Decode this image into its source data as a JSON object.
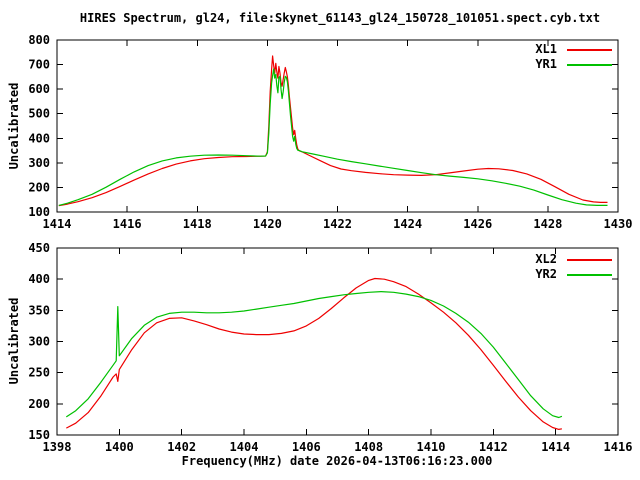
{
  "window": {
    "background": "#ffffff",
    "text_color": "#000000"
  },
  "chart_data": [
    {
      "type": "line",
      "title": "HIRES Spectrum, gl24, file:Skynet_61143_gl24_150728_101051.spect.cyb.txt",
      "xlabel": "",
      "ylabel": "Uncalibrated",
      "xlim": [
        1414,
        1430
      ],
      "ylim": [
        100,
        800
      ],
      "xticks": [
        1414,
        1416,
        1418,
        1420,
        1422,
        1424,
        1426,
        1428,
        1430
      ],
      "yticks": [
        100,
        200,
        300,
        400,
        500,
        600,
        700,
        800
      ],
      "grid": false,
      "legend_position": "top-right-inside",
      "series": [
        {
          "name": "XL1",
          "color": "#ee0000",
          "points": [
            [
              1414.05,
              126
            ],
            [
              1414.3,
              132
            ],
            [
              1414.6,
              142
            ],
            [
              1415.0,
              158
            ],
            [
              1415.4,
              179
            ],
            [
              1415.8,
              204
            ],
            [
              1416.2,
              230
            ],
            [
              1416.6,
              255
            ],
            [
              1417.0,
              277
            ],
            [
              1417.4,
              295
            ],
            [
              1417.8,
              308
            ],
            [
              1418.2,
              317
            ],
            [
              1418.6,
              322
            ],
            [
              1419.0,
              325
            ],
            [
              1419.4,
              326
            ],
            [
              1419.8,
              327
            ],
            [
              1419.95,
              328
            ],
            [
              1420.0,
              345
            ],
            [
              1420.04,
              450
            ],
            [
              1420.08,
              590
            ],
            [
              1420.12,
              680
            ],
            [
              1420.15,
              735
            ],
            [
              1420.18,
              695
            ],
            [
              1420.21,
              665
            ],
            [
              1420.24,
              705
            ],
            [
              1420.27,
              670
            ],
            [
              1420.3,
              645
            ],
            [
              1420.33,
              692
            ],
            [
              1420.36,
              665
            ],
            [
              1420.39,
              628
            ],
            [
              1420.42,
              612
            ],
            [
              1420.45,
              640
            ],
            [
              1420.48,
              665
            ],
            [
              1420.51,
              688
            ],
            [
              1420.54,
              672
            ],
            [
              1420.57,
              650
            ],
            [
              1420.6,
              615
            ],
            [
              1420.63,
              565
            ],
            [
              1420.66,
              525
            ],
            [
              1420.69,
              482
            ],
            [
              1420.72,
              442
            ],
            [
              1420.75,
              415
            ],
            [
              1420.78,
              432
            ],
            [
              1420.81,
              398
            ],
            [
              1420.84,
              372
            ],
            [
              1420.87,
              355
            ],
            [
              1420.91,
              349
            ],
            [
              1421.0,
              344
            ],
            [
              1421.2,
              330
            ],
            [
              1421.5,
              309
            ],
            [
              1421.8,
              289
            ],
            [
              1422.1,
              275
            ],
            [
              1422.4,
              268
            ],
            [
              1422.8,
              261
            ],
            [
              1423.2,
              256
            ],
            [
              1423.6,
              252
            ],
            [
              1424.0,
              250
            ],
            [
              1424.4,
              249
            ],
            [
              1424.8,
              252
            ],
            [
              1425.2,
              259
            ],
            [
              1425.6,
              267
            ],
            [
              1426.0,
              274
            ],
            [
              1426.3,
              277
            ],
            [
              1426.6,
              276
            ],
            [
              1427.0,
              269
            ],
            [
              1427.4,
              255
            ],
            [
              1427.8,
              233
            ],
            [
              1428.2,
              203
            ],
            [
              1428.6,
              172
            ],
            [
              1429.0,
              149
            ],
            [
              1429.3,
              141
            ],
            [
              1429.5,
              139
            ],
            [
              1429.7,
              139
            ]
          ]
        },
        {
          "name": "YR1",
          "color": "#00c000",
          "points": [
            [
              1414.05,
              127
            ],
            [
              1414.3,
              136
            ],
            [
              1414.6,
              150
            ],
            [
              1415.0,
              172
            ],
            [
              1415.4,
              201
            ],
            [
              1415.8,
              233
            ],
            [
              1416.2,
              263
            ],
            [
              1416.6,
              289
            ],
            [
              1417.0,
              308
            ],
            [
              1417.4,
              320
            ],
            [
              1417.8,
              327
            ],
            [
              1418.2,
              331
            ],
            [
              1418.6,
              332
            ],
            [
              1419.0,
              331
            ],
            [
              1419.4,
              329
            ],
            [
              1419.8,
              327
            ],
            [
              1419.95,
              328
            ],
            [
              1420.0,
              340
            ],
            [
              1420.04,
              420
            ],
            [
              1420.08,
              540
            ],
            [
              1420.12,
              625
            ],
            [
              1420.15,
              655
            ],
            [
              1420.18,
              682
            ],
            [
              1420.21,
              645
            ],
            [
              1420.24,
              660
            ],
            [
              1420.27,
              615
            ],
            [
              1420.3,
              585
            ],
            [
              1420.33,
              648
            ],
            [
              1420.36,
              652
            ],
            [
              1420.39,
              600
            ],
            [
              1420.42,
              562
            ],
            [
              1420.45,
              590
            ],
            [
              1420.48,
              628
            ],
            [
              1420.51,
              652
            ],
            [
              1420.54,
              648
            ],
            [
              1420.57,
              630
            ],
            [
              1420.6,
              592
            ],
            [
              1420.63,
              540
            ],
            [
              1420.66,
              492
            ],
            [
              1420.69,
              448
            ],
            [
              1420.72,
              408
            ],
            [
              1420.75,
              388
            ],
            [
              1420.78,
              408
            ],
            [
              1420.81,
              375
            ],
            [
              1420.84,
              358
            ],
            [
              1420.87,
              351
            ],
            [
              1420.91,
              350
            ],
            [
              1421.0,
              345
            ],
            [
              1421.3,
              336
            ],
            [
              1421.6,
              327
            ],
            [
              1422.0,
              315
            ],
            [
              1422.4,
              305
            ],
            [
              1422.8,
              296
            ],
            [
              1423.2,
              287
            ],
            [
              1423.6,
              278
            ],
            [
              1424.0,
              269
            ],
            [
              1424.4,
              260
            ],
            [
              1424.8,
              252
            ],
            [
              1425.2,
              246
            ],
            [
              1425.6,
              241
            ],
            [
              1426.0,
              235
            ],
            [
              1426.4,
              227
            ],
            [
              1426.8,
              217
            ],
            [
              1427.2,
              205
            ],
            [
              1427.6,
              189
            ],
            [
              1428.0,
              169
            ],
            [
              1428.4,
              150
            ],
            [
              1428.8,
              136
            ],
            [
              1429.1,
              129
            ],
            [
              1429.4,
              127
            ],
            [
              1429.7,
              127
            ]
          ]
        }
      ]
    },
    {
      "type": "line",
      "title": "",
      "xlabel": "Frequency(MHz) date 2026-04-13T06:16:23.000",
      "ylabel": "Uncalibrated",
      "xlim": [
        1398,
        1416
      ],
      "ylim": [
        150,
        450
      ],
      "xticks": [
        1398,
        1400,
        1402,
        1404,
        1406,
        1408,
        1410,
        1412,
        1414,
        1416
      ],
      "yticks": [
        150,
        200,
        250,
        300,
        350,
        400,
        450
      ],
      "grid": false,
      "legend_position": "top-right-inside",
      "series": [
        {
          "name": "XL2",
          "color": "#ee0000",
          "points": [
            [
              1398.3,
              161
            ],
            [
              1398.6,
              169
            ],
            [
              1399.0,
              186
            ],
            [
              1399.4,
              212
            ],
            [
              1399.8,
              243
            ],
            [
              1399.9,
              248
            ],
            [
              1399.95,
              236
            ],
            [
              1400.0,
              255
            ],
            [
              1400.4,
              287
            ],
            [
              1400.8,
              314
            ],
            [
              1401.2,
              330
            ],
            [
              1401.6,
              337
            ],
            [
              1402.0,
              338
            ],
            [
              1402.4,
              333
            ],
            [
              1402.8,
              327
            ],
            [
              1403.2,
              320
            ],
            [
              1403.6,
              315
            ],
            [
              1404.0,
              312
            ],
            [
              1404.4,
              311
            ],
            [
              1404.8,
              311
            ],
            [
              1405.2,
              313
            ],
            [
              1405.6,
              317
            ],
            [
              1406.0,
              325
            ],
            [
              1406.4,
              337
            ],
            [
              1406.8,
              353
            ],
            [
              1407.2,
              370
            ],
            [
              1407.6,
              386
            ],
            [
              1408.0,
              398
            ],
            [
              1408.2,
              401
            ],
            [
              1408.5,
              400
            ],
            [
              1408.8,
              396
            ],
            [
              1409.2,
              388
            ],
            [
              1409.6,
              376
            ],
            [
              1410.0,
              362
            ],
            [
              1410.4,
              347
            ],
            [
              1410.8,
              330
            ],
            [
              1411.2,
              310
            ],
            [
              1411.6,
              287
            ],
            [
              1412.0,
              262
            ],
            [
              1412.4,
              236
            ],
            [
              1412.8,
              211
            ],
            [
              1413.2,
              189
            ],
            [
              1413.6,
              171
            ],
            [
              1413.9,
              162
            ],
            [
              1414.1,
              159
            ],
            [
              1414.2,
              160
            ]
          ]
        },
        {
          "name": "YR2",
          "color": "#00c000",
          "points": [
            [
              1398.3,
              179
            ],
            [
              1398.6,
              189
            ],
            [
              1399.0,
              208
            ],
            [
              1399.4,
              234
            ],
            [
              1399.8,
              262
            ],
            [
              1399.9,
              269
            ],
            [
              1399.95,
              356
            ],
            [
              1400.0,
              277
            ],
            [
              1400.4,
              305
            ],
            [
              1400.8,
              326
            ],
            [
              1401.2,
              339
            ],
            [
              1401.6,
              345
            ],
            [
              1402.0,
              347
            ],
            [
              1402.4,
              347
            ],
            [
              1402.8,
              346
            ],
            [
              1403.2,
              346
            ],
            [
              1403.6,
              347
            ],
            [
              1404.0,
              349
            ],
            [
              1404.4,
              352
            ],
            [
              1404.8,
              355
            ],
            [
              1405.2,
              358
            ],
            [
              1405.6,
              361
            ],
            [
              1406.0,
              365
            ],
            [
              1406.4,
              369
            ],
            [
              1406.8,
              372
            ],
            [
              1407.2,
              375
            ],
            [
              1407.6,
              377
            ],
            [
              1408.0,
              379
            ],
            [
              1408.4,
              380
            ],
            [
              1408.8,
              379
            ],
            [
              1409.2,
              376
            ],
            [
              1409.6,
              372
            ],
            [
              1410.0,
              366
            ],
            [
              1410.4,
              357
            ],
            [
              1410.8,
              345
            ],
            [
              1411.2,
              331
            ],
            [
              1411.6,
              313
            ],
            [
              1412.0,
              291
            ],
            [
              1412.4,
              265
            ],
            [
              1412.8,
              239
            ],
            [
              1413.2,
              213
            ],
            [
              1413.6,
              192
            ],
            [
              1413.9,
              181
            ],
            [
              1414.1,
              178
            ],
            [
              1414.2,
              180
            ]
          ]
        }
      ]
    }
  ]
}
